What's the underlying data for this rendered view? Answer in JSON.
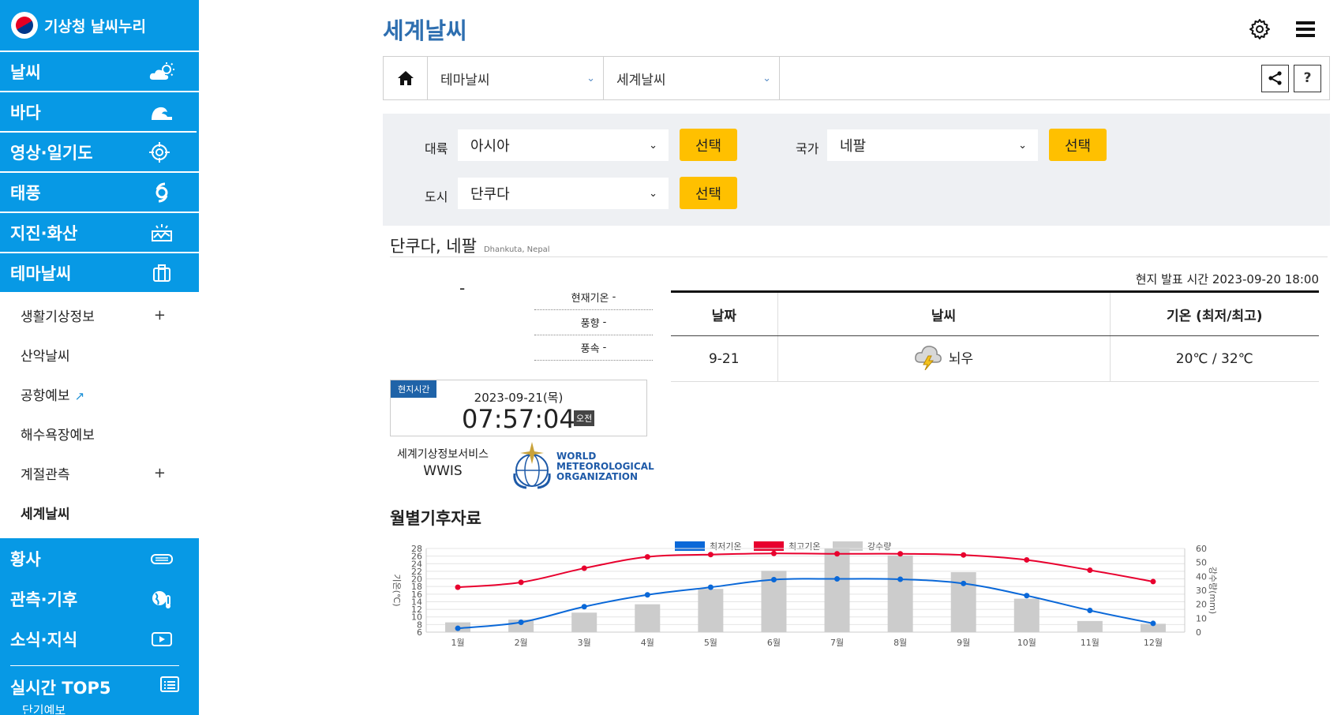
{
  "sidebar": {
    "logo": "기상청 날씨누리",
    "nav_top": [
      {
        "label": "날씨",
        "icon": "partly-cloudy-icon"
      },
      {
        "label": "바다",
        "icon": "wave-icon"
      },
      {
        "label": "영상·일기도",
        "icon": "crosshair-icon"
      },
      {
        "label": "태풍",
        "icon": "typhoon-icon"
      },
      {
        "label": "지진·화산",
        "icon": "earthquake-icon"
      },
      {
        "label": "테마날씨",
        "icon": "briefcase-icon"
      }
    ],
    "sub": [
      {
        "label": "생활기상정보",
        "extra": "+"
      },
      {
        "label": "산악날씨",
        "extra": ""
      },
      {
        "label": "공항예보",
        "extra": "↗"
      },
      {
        "label": "해수욕장예보",
        "extra": ""
      },
      {
        "label": "계절관측",
        "extra": "+"
      },
      {
        "label": "세계날씨",
        "extra": ""
      }
    ],
    "nav_bottom": [
      {
        "label": "황사",
        "icon": "dust-icon"
      },
      {
        "label": "관측·기후",
        "icon": "globe-thermometer-icon"
      },
      {
        "label": "소식·지식",
        "icon": "video-icon"
      }
    ],
    "top5": "실시간 TOP5",
    "cut": "단기예보"
  },
  "header": {
    "title": "세계날씨"
  },
  "breadcrumb": {
    "level1": "테마날씨",
    "level2": "세계날씨",
    "help": "?"
  },
  "filter": {
    "continent_label": "대륙",
    "continent_value": "아시아",
    "country_label": "국가",
    "country_value": "네팔",
    "city_label": "도시",
    "city_value": "단쿠다",
    "select_btn": "선택"
  },
  "city": {
    "name": "단쿠다, 네팔",
    "en": "Dhankuta, Nepal"
  },
  "current": {
    "weather": "-",
    "temp_label": "현재기온",
    "temp": "-",
    "wind_dir_label": "풍향",
    "wind_dir": "-",
    "wind_speed_label": "풍속",
    "wind_speed": "-"
  },
  "clock": {
    "tag": "현지시간",
    "date": "2023-09-21(목)",
    "time": "07:57:04",
    "ampm": "오전"
  },
  "wwis": {
    "ko": "세계기상정보서비스",
    "en": "WWIS"
  },
  "wmo": {
    "line1": "WORLD",
    "line2": "METEOROLOGICAL",
    "line3": "ORGANIZATION"
  },
  "forecast": {
    "issue_time": "현지 발표 시간 2023-09-20 18:00",
    "headers": [
      "날짜",
      "날씨",
      "기온 (최저/최고)"
    ],
    "rows": [
      {
        "date": "9-21",
        "weather": "뇌우",
        "temp": "20℃ / 32℃",
        "icon": "thunderstorm-icon"
      }
    ]
  },
  "climate_title": "월별기후자료",
  "colors": {
    "brand": "#0799e5",
    "title": "#2e6fb0",
    "accent": "#ffc000",
    "min_temp": "#0a68d8",
    "max_temp": "#e8002e",
    "precip": "#cccccc"
  },
  "chart_data": {
    "type": "line",
    "categories": [
      "1월",
      "2월",
      "3월",
      "4월",
      "5월",
      "6월",
      "7월",
      "8월",
      "9월",
      "10월",
      "11월",
      "12월"
    ],
    "series": [
      {
        "name": "최저기온",
        "type": "line",
        "axis": "left",
        "values": [
          7.0,
          8.6,
          12.7,
          15.8,
          17.8,
          19.8,
          20.0,
          19.9,
          18.8,
          15.6,
          11.7,
          8.3
        ]
      },
      {
        "name": "최고기온",
        "type": "line",
        "axis": "left",
        "values": [
          17.8,
          19.1,
          22.8,
          25.8,
          26.4,
          26.7,
          26.6,
          26.6,
          26.3,
          25.0,
          22.3,
          19.3
        ]
      },
      {
        "name": "강수량",
        "type": "bar",
        "axis": "right",
        "values": [
          7,
          9,
          14,
          20,
          31,
          44,
          60,
          55,
          43,
          24,
          8,
          6
        ]
      }
    ],
    "ylabel_left": "기온(℃)",
    "ylabel_right": "강수량(mm)",
    "ylim_left": [
      6,
      28
    ],
    "yticks_left": [
      6,
      8,
      10,
      12,
      14,
      16,
      18,
      20,
      22,
      24,
      26,
      28
    ],
    "ylim_right": [
      0,
      60
    ],
    "yticks_right": [
      0,
      10,
      20,
      30,
      40,
      50,
      60
    ],
    "legend": "top-center",
    "grid": true
  }
}
